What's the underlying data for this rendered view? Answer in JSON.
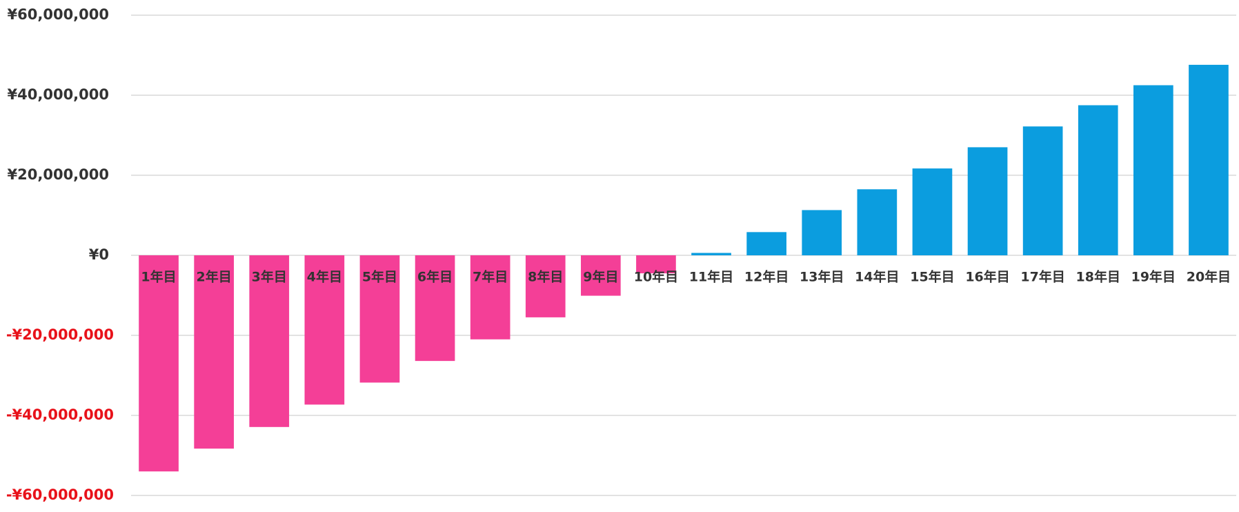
{
  "chart_data": {
    "type": "bar",
    "categories": [
      "1年目",
      "2年目",
      "3年目",
      "4年目",
      "5年目",
      "6年目",
      "7年目",
      "8年目",
      "9年目",
      "10年目",
      "11年目",
      "12年目",
      "13年目",
      "14年目",
      "15年目",
      "16年目",
      "17年目",
      "18年目",
      "19年目",
      "20年目"
    ],
    "values": [
      -54000000,
      -48300000,
      -42900000,
      -37300000,
      -31800000,
      -26400000,
      -21000000,
      -15500000,
      -10100000,
      -4500000,
      600000,
      5800000,
      11300000,
      16500000,
      21700000,
      27000000,
      32200000,
      37500000,
      42500000,
      47600000
    ],
    "color": "#0b9ddf",
    "negative_color": "#f43f97",
    "negative_tick_color": "#e8121a",
    "ylim": [
      -60000000,
      60000000
    ],
    "yticks": [
      {
        "value": -60000000,
        "label": "-¥60,000,000"
      },
      {
        "value": -40000000,
        "label": "-¥40,000,000"
      },
      {
        "value": -20000000,
        "label": "-¥20,000,000"
      },
      {
        "value": 0,
        "label": "¥0"
      },
      {
        "value": 20000000,
        "label": "¥20,000,000"
      },
      {
        "value": 40000000,
        "label": "¥40,000,000"
      },
      {
        "value": 60000000,
        "label": "¥60,000,000"
      }
    ],
    "grid": true
  }
}
